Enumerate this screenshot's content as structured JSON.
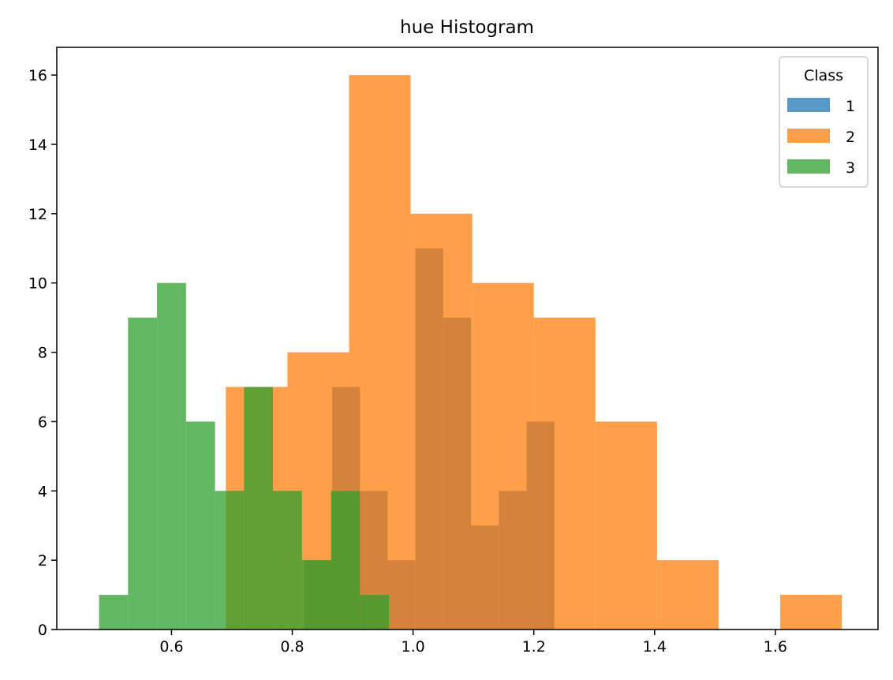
{
  "chart_data": {
    "type": "bar",
    "title": "hue Histogram",
    "xlabel": "",
    "ylabel": "",
    "xlim": [
      0.41,
      1.77
    ],
    "ylim": [
      0,
      16.8
    ],
    "xticks": [
      "0.6",
      "0.8",
      "1.0",
      "1.2",
      "1.4",
      "1.6"
    ],
    "yticks": [
      "0",
      "2",
      "4",
      "6",
      "8",
      "10",
      "12",
      "14",
      "16"
    ],
    "grid": false,
    "legend": {
      "title": "Class",
      "placement": "top-right"
    },
    "series": [
      {
        "name": "1",
        "color": "#1f77b4",
        "bin_edges": [
          0.69,
          0.736,
          0.782,
          0.828,
          0.874,
          0.92,
          0.966,
          1.012,
          1.058,
          1.104,
          1.15,
          1.196,
          1.242,
          1.288
        ],
        "counts": [
          0,
          0,
          0,
          0,
          0,
          0,
          0,
          0,
          0,
          0,
          0,
          0,
          0
        ],
        "visible": false
      },
      {
        "name": "2",
        "color": "#ff7f0e",
        "bin_edges": [
          0.69,
          0.792,
          0.894,
          0.996,
          1.098,
          1.2,
          1.302,
          1.404,
          1.506,
          1.608,
          1.71
        ],
        "counts": [
          7,
          8,
          16,
          12,
          10,
          9,
          6,
          2,
          0,
          1
        ]
      },
      {
        "name": "3",
        "color": "#2ca02c",
        "bin_edges": [
          0.48,
          0.528,
          0.576,
          0.624,
          0.672,
          0.72,
          0.768,
          0.816,
          0.864,
          0.912,
          0.96
        ],
        "counts": [
          1,
          9,
          10,
          6,
          4,
          7,
          4,
          2,
          4,
          1
        ]
      }
    ],
    "overlap_series": {
      "name": "1",
      "color": "#d4843a",
      "bin_edges": [
        0.82,
        0.866,
        0.912,
        0.958,
        1.004,
        1.05,
        1.096,
        1.142,
        1.188,
        1.234,
        1.28
      ],
      "counts": [
        2,
        7,
        4,
        2,
        11,
        9,
        3,
        4,
        6,
        0
      ]
    }
  }
}
